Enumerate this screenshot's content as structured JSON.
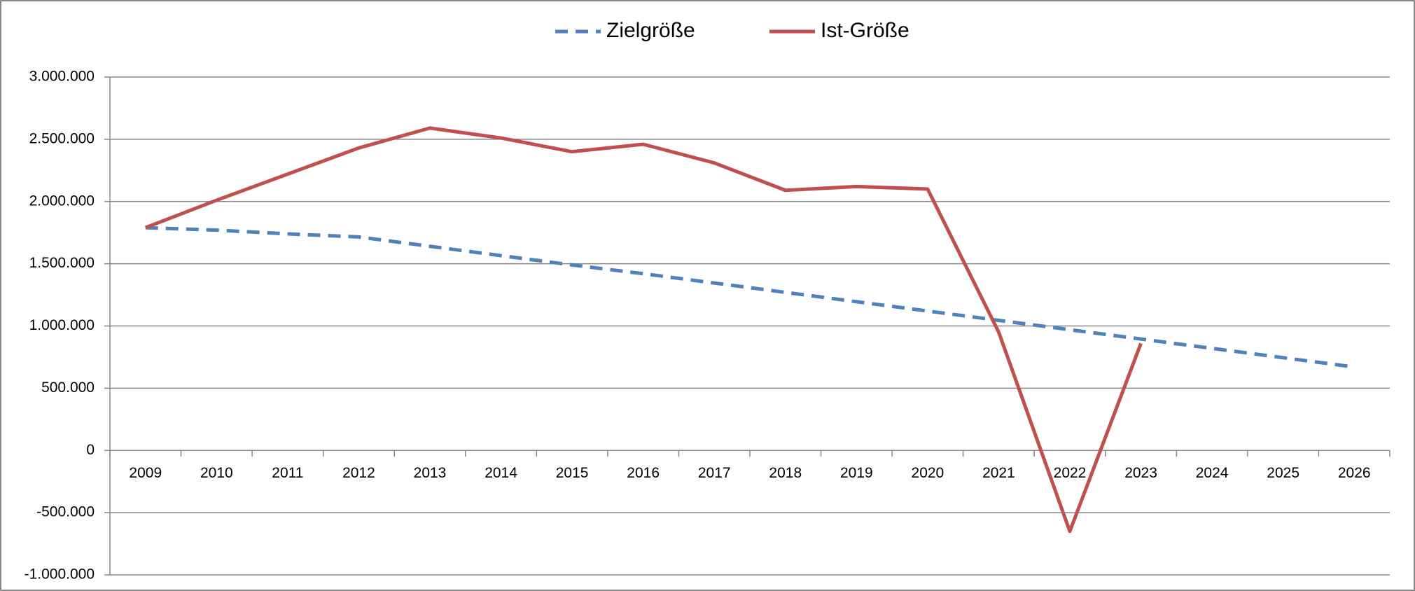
{
  "chart_data": {
    "type": "line",
    "categories": [
      "2009",
      "2010",
      "2011",
      "2012",
      "2013",
      "2014",
      "2015",
      "2016",
      "2017",
      "2018",
      "2019",
      "2020",
      "2021",
      "2022",
      "2023",
      "2024",
      "2025",
      "2026"
    ],
    "series": [
      {
        "name": "Zielgröße",
        "color": "#4f81bd",
        "dashed": true,
        "values": [
          1790000,
          1770000,
          1740000,
          1715000,
          1640000,
          1565000,
          1490000,
          1420000,
          1345000,
          1270000,
          1195000,
          1120000,
          1045000,
          970000,
          895000,
          820000,
          745000,
          670000
        ]
      },
      {
        "name": "Ist-Größe",
        "color": "#c0504d",
        "dashed": false,
        "values": [
          1790000,
          2010000,
          2220000,
          2430000,
          2590000,
          2510000,
          2400000,
          2460000,
          2310000,
          2090000,
          2120000,
          2100000,
          950000,
          -650000,
          860000,
          null,
          null,
          null
        ]
      }
    ],
    "ylim": [
      -1000000,
      3000000
    ],
    "yticks": [
      {
        "value": -1000000,
        "label": "-1.000.000"
      },
      {
        "value": -500000,
        "label": "-500.000"
      },
      0,
      {
        "value": 500000,
        "label": "500.000"
      },
      {
        "value": 1000000,
        "label": "1.000.000"
      },
      {
        "value": 1500000,
        "label": "1.500.000"
      },
      {
        "value": 2000000,
        "label": "2.000.000"
      },
      {
        "value": 2500000,
        "label": "2.500.000"
      },
      {
        "value": 3000000,
        "label": "3.000.000"
      }
    ],
    "grid": true,
    "legend": "top"
  }
}
